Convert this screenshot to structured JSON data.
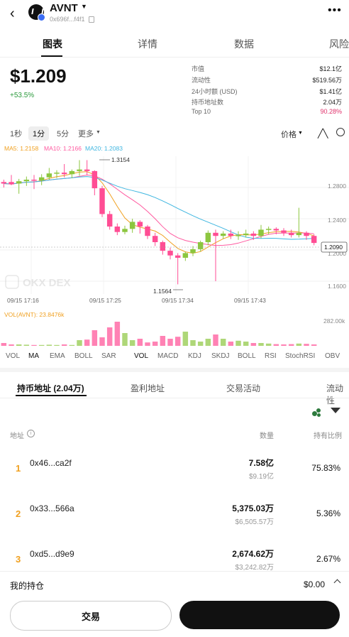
{
  "header": {
    "title": "AVNT",
    "address": "0x696f...f4f1"
  },
  "tabs": [
    "图表",
    "详情",
    "数据",
    "风险"
  ],
  "price": {
    "value": "$1.209",
    "change": "+53.5%"
  },
  "stats": [
    {
      "label": "市值",
      "value": "$12.1亿"
    },
    {
      "label": "流动性",
      "value": "$519.56万"
    },
    {
      "label": "24小时额 (USD)",
      "value": "$1.41亿"
    },
    {
      "label": "持币地址数",
      "value": "2.04万"
    },
    {
      "label": "Top 10",
      "value": "90.28%"
    }
  ],
  "intervals": [
    "1秒",
    "1分",
    "5分",
    "更多"
  ],
  "chart_controls": {
    "price_label": "价格"
  },
  "chart": {
    "ma5": "MA5: 1.2158",
    "ma10": "MA10: 1.2166",
    "ma20": "MA20: 1.2083",
    "y_ticks": [
      "1.2800",
      "1.2400",
      "1.2000",
      "1.1600"
    ],
    "current_price_tag": "1.2090",
    "high_label": "1.3154",
    "low_label": "1.1564",
    "x_ticks": [
      "09/15 17:16",
      "09/15 17:25",
      "09/15 17:34",
      "09/15 17:43"
    ],
    "watermark": "OKX DEX",
    "vol_label": "VOL(AVNT): 23.8476k",
    "vol_max": "282.00k"
  },
  "chart_data": {
    "type": "candlestick",
    "ylim": [
      1.1564,
      1.3154
    ],
    "candles": [
      {
        "o": 1.287,
        "c": 1.285,
        "h": 1.29,
        "l": 1.28,
        "up": false
      },
      {
        "o": 1.287,
        "c": 1.284,
        "h": 1.296,
        "l": 1.283,
        "up": false
      },
      {
        "o": 1.285,
        "c": 1.288,
        "h": 1.291,
        "l": 1.272,
        "up": true
      },
      {
        "o": 1.288,
        "c": 1.29,
        "h": 1.294,
        "l": 1.282,
        "up": true
      },
      {
        "o": 1.29,
        "c": 1.289,
        "h": 1.296,
        "l": 1.278,
        "up": false
      },
      {
        "o": 1.289,
        "c": 1.293,
        "h": 1.297,
        "l": 1.283,
        "up": true
      },
      {
        "o": 1.293,
        "c": 1.298,
        "h": 1.305,
        "l": 1.29,
        "up": true
      },
      {
        "o": 1.298,
        "c": 1.299,
        "h": 1.302,
        "l": 1.292,
        "up": true
      },
      {
        "o": 1.299,
        "c": 1.297,
        "h": 1.31,
        "l": 1.293,
        "up": false
      },
      {
        "o": 1.297,
        "c": 1.301,
        "h": 1.303,
        "l": 1.292,
        "up": true
      },
      {
        "o": 1.301,
        "c": 1.303,
        "h": 1.315,
        "l": 1.295,
        "up": true
      },
      {
        "o": 1.303,
        "c": 1.301,
        "h": 1.315,
        "l": 1.296,
        "up": false
      },
      {
        "o": 1.301,
        "c": 1.279,
        "h": 1.302,
        "l": 1.27,
        "up": false
      },
      {
        "o": 1.279,
        "c": 1.246,
        "h": 1.282,
        "l": 1.242,
        "up": false
      },
      {
        "o": 1.246,
        "c": 1.23,
        "h": 1.25,
        "l": 1.226,
        "up": false
      },
      {
        "o": 1.23,
        "c": 1.223,
        "h": 1.234,
        "l": 1.219,
        "up": false
      },
      {
        "o": 1.223,
        "c": 1.227,
        "h": 1.231,
        "l": 1.22,
        "up": true
      },
      {
        "o": 1.227,
        "c": 1.236,
        "h": 1.24,
        "l": 1.222,
        "up": true
      },
      {
        "o": 1.236,
        "c": 1.23,
        "h": 1.238,
        "l": 1.221,
        "up": false
      },
      {
        "o": 1.23,
        "c": 1.218,
        "h": 1.232,
        "l": 1.214,
        "up": false
      },
      {
        "o": 1.218,
        "c": 1.21,
        "h": 1.222,
        "l": 1.205,
        "up": false
      },
      {
        "o": 1.21,
        "c": 1.199,
        "h": 1.212,
        "l": 1.194,
        "up": false
      },
      {
        "o": 1.199,
        "c": 1.193,
        "h": 1.203,
        "l": 1.188,
        "up": false
      },
      {
        "o": 1.193,
        "c": 1.19,
        "h": 1.196,
        "l": 1.156,
        "up": false
      },
      {
        "o": 1.19,
        "c": 1.196,
        "h": 1.198,
        "l": 1.186,
        "up": true
      },
      {
        "o": 1.196,
        "c": 1.201,
        "h": 1.205,
        "l": 1.192,
        "up": true
      },
      {
        "o": 1.201,
        "c": 1.21,
        "h": 1.212,
        "l": 1.198,
        "up": true
      },
      {
        "o": 1.21,
        "c": 1.222,
        "h": 1.225,
        "l": 1.206,
        "up": true
      },
      {
        "o": 1.222,
        "c": 1.218,
        "h": 1.226,
        "l": 1.16,
        "up": false
      },
      {
        "o": 1.218,
        "c": 1.221,
        "h": 1.224,
        "l": 1.214,
        "up": true
      },
      {
        "o": 1.221,
        "c": 1.218,
        "h": 1.226,
        "l": 1.214,
        "up": false
      },
      {
        "o": 1.218,
        "c": 1.219,
        "h": 1.224,
        "l": 1.213,
        "up": true
      },
      {
        "o": 1.219,
        "c": 1.221,
        "h": 1.226,
        "l": 1.216,
        "up": true
      },
      {
        "o": 1.221,
        "c": 1.218,
        "h": 1.224,
        "l": 1.213,
        "up": false
      },
      {
        "o": 1.218,
        "c": 1.226,
        "h": 1.232,
        "l": 1.215,
        "up": true
      },
      {
        "o": 1.226,
        "c": 1.227,
        "h": 1.23,
        "l": 1.22,
        "up": true
      },
      {
        "o": 1.227,
        "c": 1.225,
        "h": 1.229,
        "l": 1.22,
        "up": false
      },
      {
        "o": 1.225,
        "c": 1.222,
        "h": 1.228,
        "l": 1.218,
        "up": false
      },
      {
        "o": 1.222,
        "c": 1.219,
        "h": 1.226,
        "l": 1.216,
        "up": false
      },
      {
        "o": 1.219,
        "c": 1.222,
        "h": 1.254,
        "l": 1.216,
        "up": true
      },
      {
        "o": 1.222,
        "c": 1.218,
        "h": 1.224,
        "l": 1.213,
        "up": false
      },
      {
        "o": 1.218,
        "c": 1.209,
        "h": 1.22,
        "l": 1.206,
        "up": false
      }
    ],
    "volumes": [
      0.1,
      0.05,
      0.05,
      0.04,
      0.03,
      0.03,
      0.04,
      0.03,
      0.05,
      0.03,
      0.2,
      0.22,
      0.55,
      0.3,
      0.65,
      0.85,
      0.45,
      0.2,
      0.25,
      0.12,
      0.15,
      0.35,
      0.25,
      0.32,
      0.5,
      0.2,
      0.15,
      0.25,
      0.4,
      0.25,
      0.15,
      0.18,
      0.15,
      0.1,
      0.1,
      0.08,
      0.06,
      0.05,
      0.06,
      0.08,
      0.07,
      0.05
    ]
  },
  "indicators": [
    "VOL",
    "MA",
    "EMA",
    "BOLL",
    "SAR",
    "VOL",
    "MACD",
    "KDJ",
    "SKDJ",
    "BOLL",
    "RSI",
    "StochRSI",
    "OBV"
  ],
  "holder_tabs": [
    "持币地址 (2.04万)",
    "盈利地址",
    "交易活动",
    "流动性"
  ],
  "holder_table": {
    "col_address": "地址",
    "col_amount": "数量",
    "col_ratio": "持有比例",
    "rows": [
      {
        "rank": "1",
        "address": "0x46...ca2f",
        "amount": "7.58亿",
        "usd": "$9.19亿",
        "ratio": "75.83%"
      },
      {
        "rank": "2",
        "address": "0x33...566a",
        "amount": "5,375.03万",
        "usd": "$6,505.57万",
        "ratio": "5.36%"
      },
      {
        "rank": "3",
        "address": "0xd5...d9e9",
        "amount": "2,674.62万",
        "usd": "$3,242.82万",
        "ratio": "2.67%"
      }
    ]
  },
  "my_holding": {
    "label": "我的持仓",
    "value": "$0.00"
  },
  "actions": {
    "trade": "交易"
  },
  "colors": {
    "up": "#8cc63f",
    "down": "#ff4d94",
    "ma5": "#f0a020",
    "ma10": "#ff5aa0",
    "ma20": "#3fb6e0"
  }
}
